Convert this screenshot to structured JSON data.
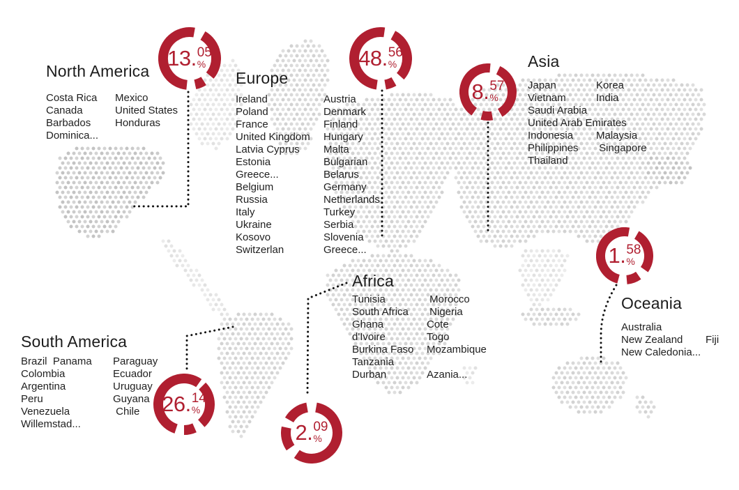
{
  "chart_data": {
    "type": "pie",
    "title": "",
    "categories": [
      "North America",
      "Europe",
      "Asia",
      "Oceania",
      "South America",
      "Africa"
    ],
    "values": [
      13.05,
      48.56,
      8.57,
      1.58,
      26.14,
      2.09
    ],
    "unit": "%",
    "accent_color": "#b01f30",
    "map_dot_color": "#d8d8d8",
    "connector_color": "#111111"
  },
  "regions": [
    {
      "id": "north-america",
      "title": "North America",
      "percent": {
        "big": "13.",
        "sup": "05",
        "sign": "%"
      },
      "columns": [
        [
          "Costa Rica",
          "Canada",
          "Barbados",
          "Dominica..."
        ],
        [
          "Mexico",
          "United States",
          "Honduras"
        ]
      ]
    },
    {
      "id": "europe",
      "title": "Europe",
      "percent": {
        "big": "48.",
        "sup": "56",
        "sign": "%"
      },
      "columns": [
        [
          "Ireland",
          "Poland",
          "France",
          "United Kingdom",
          "Latvia Cyprus",
          "Estonia",
          "Greece...",
          "Belgium",
          "Russia",
          "Italy",
          "Ukraine",
          "Kosovo",
          "Switzerlan"
        ],
        [
          "Austria",
          "Denmark",
          "Finland",
          "Hungary",
          "Malta",
          "Bulgarian",
          "Belarus",
          "Germany",
          "Netherlands",
          "Turkey",
          "Serbia",
          "Slovenia",
          "Greece..."
        ]
      ]
    },
    {
      "id": "asia",
      "title": "Asia",
      "percent": {
        "big": "8.",
        "sup": "57",
        "sign": "%"
      },
      "columns": [
        [
          "Japan",
          "Vietnam",
          "Saudi Arabia",
          "United Arab Emirates",
          "Indonesia",
          "Philippines",
          "Thailand"
        ],
        [
          "Korea",
          "India",
          "",
          "",
          "Malaysia",
          " Singapore"
        ]
      ]
    },
    {
      "id": "oceania",
      "title": "Oceania",
      "percent": {
        "big": "1.",
        "sup": "58",
        "sign": "%"
      },
      "columns": [
        [
          "Australia",
          "New Zealand",
          "New Caledonia..."
        ],
        [
          "",
          "Fiji"
        ]
      ]
    },
    {
      "id": "south-america",
      "title": "South America",
      "percent": {
        "big": "26.",
        "sup": "14",
        "sign": "%"
      },
      "columns": [
        [
          "Brazil  Panama",
          "Colombia",
          "Argentina",
          "Peru",
          "Venezuela",
          "Willemstad..."
        ],
        [
          "Paraguay",
          "Ecuador",
          "Uruguay",
          "Guyana",
          " Chile"
        ]
      ]
    },
    {
      "id": "africa",
      "title": "Africa",
      "percent": {
        "big": "2.",
        "sup": "09",
        "sign": "%"
      },
      "columns": [
        [
          "Tunisia",
          "South Africa",
          "Ghana",
          "d'Ivoire",
          "Burkina Faso",
          "Tanzania",
          "Durban"
        ],
        [
          " Morocco",
          " Nigeria",
          "Cote",
          "Togo",
          "Mozambique",
          "",
          "Azania..."
        ]
      ]
    }
  ]
}
